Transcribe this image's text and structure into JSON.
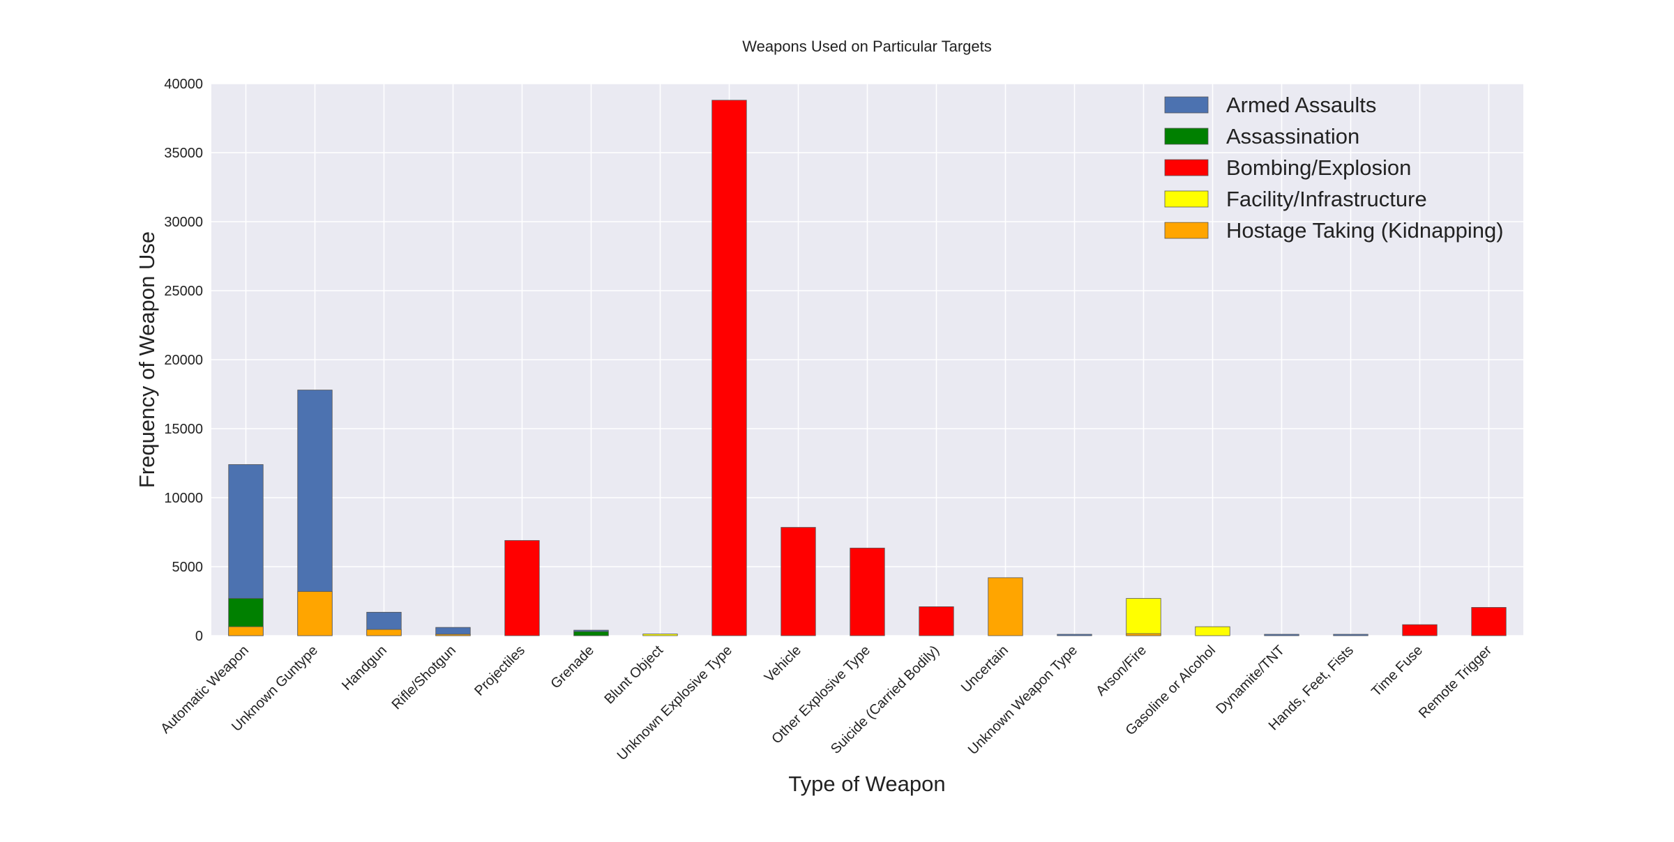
{
  "chart_data": {
    "type": "bar",
    "stacked": "overlaid",
    "title": "Weapons Used on Particular Targets",
    "xlabel": "Type of Weapon",
    "ylabel": "Frequency of Weapon Use",
    "ylim": [
      0,
      40000
    ],
    "yticks": [
      "0",
      "5000",
      "10000",
      "15000",
      "20000",
      "25000",
      "30000",
      "35000",
      "40000"
    ],
    "ytick_values": [
      0,
      5000,
      10000,
      15000,
      20000,
      25000,
      30000,
      35000,
      40000
    ],
    "grid": true,
    "legend_position": "top-right",
    "categories": [
      "Automatic Weapon",
      "Unknown Guntype",
      "Handgun",
      "Rifle/Shotgun",
      "Projectiles",
      "Grenade",
      "Blunt Object",
      "Unknown Explosive Type",
      "Vehicle",
      "Other Explosive Type",
      "Suicide (Carried Bodily)",
      "Uncertain",
      "Unknown Weapon Type",
      "Arson/Fire",
      "Gasoline or Alcohol",
      "Dynamite/TNT",
      "Hands, Feet, Fists",
      "Time Fuse",
      "Remote Trigger"
    ],
    "series": [
      {
        "name": "Armed Assaults",
        "color": "#4c72b0",
        "values": [
          12400,
          17800,
          1700,
          600,
          0,
          400,
          0,
          0,
          0,
          0,
          0,
          0,
          100,
          0,
          0,
          100,
          100,
          0,
          0
        ]
      },
      {
        "name": "Assassination",
        "color": "#008000",
        "values": [
          2700,
          0,
          0,
          0,
          0,
          300,
          0,
          0,
          0,
          0,
          0,
          0,
          0,
          0,
          0,
          0,
          0,
          0,
          0
        ]
      },
      {
        "name": "Bombing/Explosion",
        "color": "#ff0000",
        "values": [
          0,
          0,
          0,
          0,
          6900,
          0,
          0,
          38800,
          7850,
          6350,
          2100,
          0,
          0,
          0,
          0,
          0,
          0,
          800,
          2050
        ]
      },
      {
        "name": "Facility/Infrastructure",
        "color": "#ffff00",
        "values": [
          0,
          0,
          0,
          0,
          0,
          0,
          120,
          0,
          0,
          0,
          0,
          0,
          0,
          2700,
          650,
          0,
          0,
          0,
          0
        ]
      },
      {
        "name": "Hostage Taking (Kidnapping)",
        "color": "#ffa500",
        "values": [
          650,
          3200,
          450,
          100,
          0,
          0,
          0,
          0,
          0,
          0,
          0,
          4200,
          0,
          150,
          0,
          0,
          0,
          0,
          0
        ]
      }
    ]
  }
}
